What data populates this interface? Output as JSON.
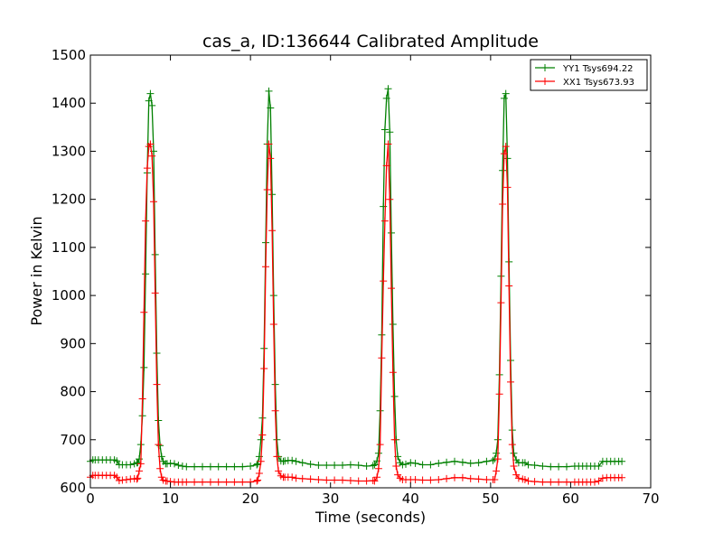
{
  "chart_data": {
    "type": "line",
    "title": "cas_a, ID:136644 Calibrated Amplitude",
    "xlabel": "Time (seconds)",
    "ylabel": "Power in Kelvin",
    "xlim": [
      0,
      70
    ],
    "ylim": [
      600,
      1500
    ],
    "x_ticks": [
      0,
      10,
      20,
      30,
      40,
      50,
      60,
      70
    ],
    "y_ticks": [
      600,
      700,
      800,
      900,
      1000,
      1100,
      1200,
      1300,
      1400,
      1500
    ],
    "grid": false,
    "legend_position": "top-right",
    "markers": "plus",
    "peak_centers": [
      7.5,
      22.5,
      37.5,
      52.5
    ],
    "series": [
      {
        "name": "YY1 Tsys694.22",
        "color": "#008000",
        "baseline": [
          [
            0.0,
            655
          ],
          [
            0.3,
            658
          ],
          [
            0.6,
            658
          ],
          [
            1.0,
            658
          ],
          [
            1.5,
            658
          ],
          [
            2.0,
            658
          ],
          [
            2.5,
            658
          ],
          [
            3.0,
            658
          ],
          [
            3.3,
            656
          ],
          [
            3.6,
            648
          ],
          [
            4.0,
            648
          ],
          [
            4.5,
            648
          ],
          [
            5.0,
            648
          ],
          [
            5.5,
            650
          ],
          [
            5.8,
            652
          ],
          [
            9.6,
            650
          ],
          [
            10.0,
            651
          ],
          [
            10.5,
            650
          ],
          [
            11.0,
            647
          ],
          [
            11.5,
            645
          ],
          [
            12,
            644
          ],
          [
            13,
            644
          ],
          [
            14,
            644
          ],
          [
            15,
            644
          ],
          [
            16,
            644
          ],
          [
            17,
            644
          ],
          [
            18,
            644
          ],
          [
            19,
            644
          ],
          [
            20,
            645
          ],
          [
            20.8,
            648
          ],
          [
            24.3,
            656
          ],
          [
            24.7,
            657
          ],
          [
            25.2,
            657
          ],
          [
            25.7,
            655
          ],
          [
            26.5,
            652
          ],
          [
            27.5,
            649
          ],
          [
            28.5,
            647
          ],
          [
            29.5,
            647
          ],
          [
            30.5,
            647
          ],
          [
            31.5,
            647
          ],
          [
            32.5,
            648
          ],
          [
            33.5,
            647
          ],
          [
            34.5,
            645
          ],
          [
            35.3,
            646
          ],
          [
            39.4,
            649
          ],
          [
            40.0,
            652
          ],
          [
            40.6,
            651
          ],
          [
            41.5,
            648
          ],
          [
            42.5,
            648
          ],
          [
            43.5,
            651
          ],
          [
            44.5,
            653
          ],
          [
            45.5,
            655
          ],
          [
            46.5,
            653
          ],
          [
            47.5,
            651
          ],
          [
            48.5,
            652
          ],
          [
            49.5,
            655
          ],
          [
            50.3,
            657
          ],
          [
            54.3,
            652
          ],
          [
            54.7,
            648
          ],
          [
            55.5,
            647
          ],
          [
            56.5,
            645
          ],
          [
            57.5,
            644
          ],
          [
            58.5,
            644
          ],
          [
            59.5,
            644
          ],
          [
            60.5,
            645
          ],
          [
            61,
            645
          ],
          [
            61.5,
            645
          ],
          [
            62,
            645
          ],
          [
            62.5,
            645
          ],
          [
            63,
            645
          ],
          [
            63.5,
            645
          ],
          [
            64,
            655
          ],
          [
            64.5,
            655
          ],
          [
            65,
            655
          ],
          [
            65.5,
            655
          ],
          [
            66,
            655
          ],
          [
            66.4,
            655
          ]
        ],
        "peaks": [
          [
            [
              5.9,
              652
            ],
            [
              6.1,
              660
            ],
            [
              6.3,
              690
            ],
            [
              6.5,
              750
            ],
            [
              6.7,
              850
            ],
            [
              6.9,
              1045
            ],
            [
              7.1,
              1255
            ],
            [
              7.3,
              1405
            ],
            [
              7.5,
              1420
            ],
            [
              7.7,
              1395
            ],
            [
              7.9,
              1300
            ],
            [
              8.1,
              1085
            ],
            [
              8.3,
              880
            ],
            [
              8.5,
              740
            ],
            [
              8.7,
              688
            ],
            [
              8.9,
              665
            ],
            [
              9.1,
              655
            ],
            [
              9.4,
              650
            ]
          ],
          [
            [
              20.9,
              650
            ],
            [
              21.1,
              665
            ],
            [
              21.3,
              700
            ],
            [
              21.5,
              745
            ],
            [
              21.7,
              890
            ],
            [
              21.9,
              1110
            ],
            [
              22.1,
              1315
            ],
            [
              22.3,
              1425
            ],
            [
              22.5,
              1390
            ],
            [
              22.7,
              1210
            ],
            [
              22.9,
              1000
            ],
            [
              23.1,
              815
            ],
            [
              23.3,
              700
            ],
            [
              23.5,
              665
            ],
            [
              23.8,
              656
            ],
            [
              24.1,
              655
            ]
          ],
          [
            [
              35.5,
              648
            ],
            [
              35.8,
              656
            ],
            [
              36.0,
              672
            ],
            [
              36.2,
              760
            ],
            [
              36.4,
              918
            ],
            [
              36.6,
              1185
            ],
            [
              36.8,
              1345
            ],
            [
              37.0,
              1410
            ],
            [
              37.2,
              1430
            ],
            [
              37.4,
              1340
            ],
            [
              37.6,
              1130
            ],
            [
              37.8,
              940
            ],
            [
              38.0,
              790
            ],
            [
              38.2,
              700
            ],
            [
              38.4,
              665
            ],
            [
              38.7,
              652
            ],
            [
              39.0,
              648
            ]
          ],
          [
            [
              50.5,
              660
            ],
            [
              50.7,
              672
            ],
            [
              50.9,
              700
            ],
            [
              51.1,
              835
            ],
            [
              51.3,
              1040
            ],
            [
              51.5,
              1260
            ],
            [
              51.7,
              1410
            ],
            [
              51.9,
              1420
            ],
            [
              52.1,
              1285
            ],
            [
              52.3,
              1070
            ],
            [
              52.5,
              865
            ],
            [
              52.7,
              720
            ],
            [
              52.9,
              672
            ],
            [
              53.2,
              658
            ],
            [
              53.5,
              652
            ],
            [
              54.0,
              652
            ]
          ]
        ]
      },
      {
        "name": "XX1 Tsys673.93",
        "color": "#ff0000",
        "baseline": [
          [
            0.0,
            622
          ],
          [
            0.3,
            626
          ],
          [
            0.6,
            626
          ],
          [
            1.0,
            626
          ],
          [
            1.5,
            626
          ],
          [
            2.0,
            626
          ],
          [
            2.5,
            626
          ],
          [
            3.0,
            626
          ],
          [
            3.3,
            622
          ],
          [
            3.6,
            615
          ],
          [
            4.0,
            616
          ],
          [
            4.5,
            617
          ],
          [
            5.0,
            618
          ],
          [
            5.5,
            619
          ],
          [
            5.8,
            618
          ],
          [
            9.6,
            614
          ],
          [
            10.0,
            613
          ],
          [
            10.5,
            612
          ],
          [
            11.0,
            612
          ],
          [
            11.5,
            612
          ],
          [
            12,
            612
          ],
          [
            13,
            612
          ],
          [
            14,
            612
          ],
          [
            15,
            612
          ],
          [
            16,
            612
          ],
          [
            17,
            612
          ],
          [
            18,
            612
          ],
          [
            19,
            612
          ],
          [
            20,
            612
          ],
          [
            20.8,
            614
          ],
          [
            24.3,
            622
          ],
          [
            24.7,
            622
          ],
          [
            25.2,
            622
          ],
          [
            25.7,
            620
          ],
          [
            26.5,
            619
          ],
          [
            27.5,
            618
          ],
          [
            28.5,
            617
          ],
          [
            29.5,
            616
          ],
          [
            30.5,
            616
          ],
          [
            31.5,
            616
          ],
          [
            32.5,
            615
          ],
          [
            33.5,
            614
          ],
          [
            34.5,
            614
          ],
          [
            35.3,
            615
          ],
          [
            39.4,
            617
          ],
          [
            40.0,
            617
          ],
          [
            40.6,
            617
          ],
          [
            41.5,
            616
          ],
          [
            42.5,
            616
          ],
          [
            43.5,
            617
          ],
          [
            44.5,
            619
          ],
          [
            45.5,
            621
          ],
          [
            46.5,
            621
          ],
          [
            47.5,
            619
          ],
          [
            48.5,
            618
          ],
          [
            49.5,
            617
          ],
          [
            50.3,
            617
          ],
          [
            54.3,
            617
          ],
          [
            54.7,
            614
          ],
          [
            55.5,
            613
          ],
          [
            56.5,
            612
          ],
          [
            57.5,
            612
          ],
          [
            58.5,
            612
          ],
          [
            59.5,
            612
          ],
          [
            60.5,
            612
          ],
          [
            61,
            612
          ],
          [
            61.5,
            612
          ],
          [
            62,
            612
          ],
          [
            62.5,
            612
          ],
          [
            63,
            612
          ],
          [
            63.5,
            614
          ],
          [
            64,
            620
          ],
          [
            64.5,
            621
          ],
          [
            65,
            621
          ],
          [
            65.5,
            621
          ],
          [
            66,
            621
          ],
          [
            66.4,
            621
          ]
        ],
        "peaks": [
          [
            [
              5.9,
              620
            ],
            [
              6.1,
              635
            ],
            [
              6.3,
              650
            ],
            [
              6.5,
              785
            ],
            [
              6.7,
              965
            ],
            [
              6.9,
              1155
            ],
            [
              7.1,
              1265
            ],
            [
              7.3,
              1310
            ],
            [
              7.5,
              1315
            ],
            [
              7.7,
              1290
            ],
            [
              7.9,
              1195
            ],
            [
              8.1,
              1005
            ],
            [
              8.3,
              815
            ],
            [
              8.5,
              690
            ],
            [
              8.7,
              640
            ],
            [
              8.9,
              622
            ],
            [
              9.1,
              616
            ],
            [
              9.4,
              614
            ]
          ],
          [
            [
              20.9,
              616
            ],
            [
              21.1,
              630
            ],
            [
              21.3,
              655
            ],
            [
              21.5,
              710
            ],
            [
              21.7,
              848
            ],
            [
              21.9,
              1060
            ],
            [
              22.1,
              1220
            ],
            [
              22.3,
              1315
            ],
            [
              22.5,
              1285
            ],
            [
              22.7,
              1135
            ],
            [
              22.9,
              940
            ],
            [
              23.1,
              760
            ],
            [
              23.3,
              665
            ],
            [
              23.5,
              635
            ],
            [
              23.8,
              625
            ],
            [
              24.1,
              622
            ]
          ],
          [
            [
              35.5,
              614
            ],
            [
              35.8,
              622
            ],
            [
              36.0,
              640
            ],
            [
              36.2,
              690
            ],
            [
              36.4,
              870
            ],
            [
              36.6,
              1030
            ],
            [
              36.8,
              1155
            ],
            [
              37.0,
              1270
            ],
            [
              37.2,
              1315
            ],
            [
              37.4,
              1200
            ],
            [
              37.6,
              1015
            ],
            [
              37.8,
              840
            ],
            [
              38.0,
              700
            ],
            [
              38.2,
              645
            ],
            [
              38.4,
              627
            ],
            [
              38.7,
              620
            ],
            [
              39.0,
              617
            ]
          ],
          [
            [
              50.5,
              617
            ],
            [
              50.7,
              635
            ],
            [
              50.9,
              660
            ],
            [
              51.1,
              795
            ],
            [
              51.3,
              985
            ],
            [
              51.5,
              1190
            ],
            [
              51.7,
              1295
            ],
            [
              51.9,
              1310
            ],
            [
              52.1,
              1225
            ],
            [
              52.3,
              1020
            ],
            [
              52.5,
              820
            ],
            [
              52.7,
              690
            ],
            [
              52.9,
              645
            ],
            [
              53.2,
              627
            ],
            [
              53.5,
              620
            ],
            [
              54.0,
              618
            ]
          ]
        ]
      }
    ]
  }
}
